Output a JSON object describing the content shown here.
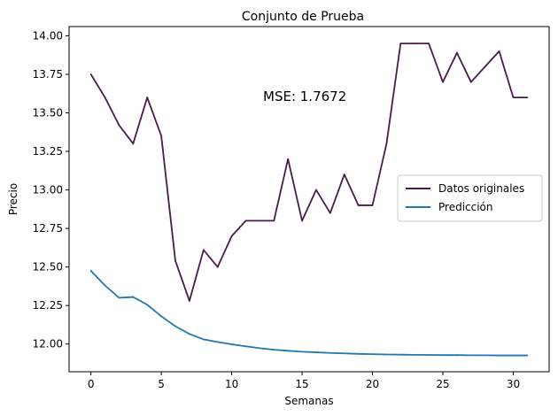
{
  "chart_data": {
    "type": "line",
    "title": "Conjunto de Prueba",
    "xlabel": "Semanas",
    "ylabel": "Precio",
    "xlim": [
      -1.55,
      32.55
    ],
    "ylim": [
      11.82,
      14.06
    ],
    "xticks": [
      0,
      5,
      10,
      15,
      20,
      25,
      30
    ],
    "yticks": [
      12.0,
      12.25,
      12.5,
      12.75,
      13.0,
      13.25,
      13.5,
      13.75,
      14.0
    ],
    "annotation": "MSE: 1.7672",
    "legend_position": "center-right",
    "grid": false,
    "x": [
      0,
      1,
      2,
      3,
      4,
      5,
      6,
      7,
      8,
      9,
      10,
      11,
      12,
      13,
      14,
      15,
      16,
      17,
      18,
      19,
      20,
      21,
      22,
      23,
      24,
      25,
      26,
      27,
      28,
      29,
      30,
      31
    ],
    "series": [
      {
        "name": "Datos originales",
        "color": "#4a1c4d",
        "values": [
          13.75,
          13.6,
          13.42,
          13.3,
          13.6,
          13.35,
          12.54,
          12.28,
          12.61,
          12.5,
          12.7,
          12.8,
          12.8,
          12.8,
          13.2,
          12.8,
          13.0,
          12.85,
          13.1,
          12.9,
          12.9,
          13.3,
          13.95,
          13.95,
          13.95,
          13.7,
          13.89,
          13.7,
          13.8,
          13.9,
          13.6,
          13.6
        ]
      },
      {
        "name": "Predicción",
        "color": "#1f77b4",
        "values": [
          12.475,
          12.38,
          12.3,
          12.305,
          12.255,
          12.18,
          12.115,
          12.065,
          12.03,
          12.013,
          11.998,
          11.985,
          11.973,
          11.963,
          11.956,
          11.95,
          11.946,
          11.942,
          11.939,
          11.936,
          11.934,
          11.932,
          11.931,
          11.93,
          11.929,
          11.928,
          11.928,
          11.927,
          11.927,
          11.926,
          11.926,
          11.926
        ]
      }
    ]
  }
}
